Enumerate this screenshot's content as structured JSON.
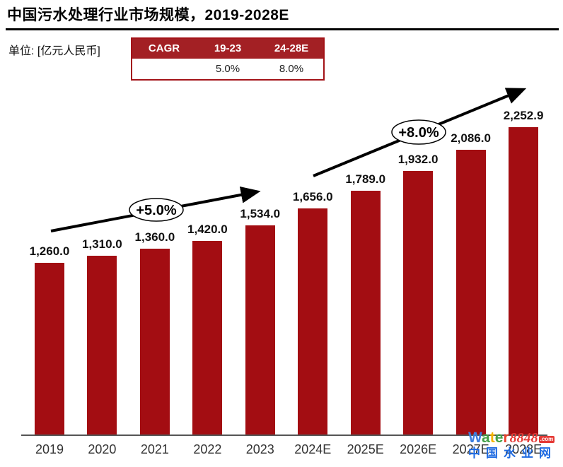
{
  "title": "中国污水处理行业市场规模，2019-2028E",
  "unit_label": "单位: [亿元人民币]",
  "cagr_table": {
    "headers": [
      "CAGR",
      "19-23",
      "24-28E"
    ],
    "row": [
      "",
      "5.0%",
      "8.0%"
    ],
    "header_bg": "#A32024",
    "border_color": "#A31318"
  },
  "chart_data": {
    "type": "bar",
    "title": "中国污水处理行业市场规模，2019-2028E",
    "xlabel": "",
    "ylabel": "亿元人民币",
    "categories": [
      "2019",
      "2020",
      "2021",
      "2022",
      "2023",
      "2024E",
      "2025E",
      "2026E",
      "2027E",
      "2028E"
    ],
    "values": [
      1260.0,
      1310.0,
      1360.0,
      1420.0,
      1534.0,
      1656.0,
      1789.0,
      1932.0,
      2086.0,
      2252.9
    ],
    "value_labels": [
      "1,260.0",
      "1,310.0",
      "1,360.0",
      "1,420.0",
      "1,534.0",
      "1,656.0",
      "1,789.0",
      "1,932.0",
      "2,086.0",
      "2,252.9"
    ],
    "ylim": [
      0,
      2400
    ],
    "grid": false,
    "legend": "none",
    "bar_color": "#A30D12",
    "annotations": [
      {
        "label": "+5.0%",
        "applies_to": "2019-2023"
      },
      {
        "label": "+8.0%",
        "applies_to": "2024E-2028E"
      }
    ]
  },
  "watermark": {
    "brand_letters": [
      {
        "ch": "W",
        "color": "#3D7FE0"
      },
      {
        "ch": "a",
        "color": "#43A047"
      },
      {
        "ch": "t",
        "color": "#F4B400"
      },
      {
        "ch": "e",
        "color": "#43A047"
      },
      {
        "ch": "r",
        "color": "#E8442E"
      }
    ],
    "number": "8848",
    "number_color": "#E53935",
    "tld": ".com",
    "tld_bg": "#E53935",
    "site_name": "中国水业网",
    "site_color": "#1E6AE1"
  }
}
